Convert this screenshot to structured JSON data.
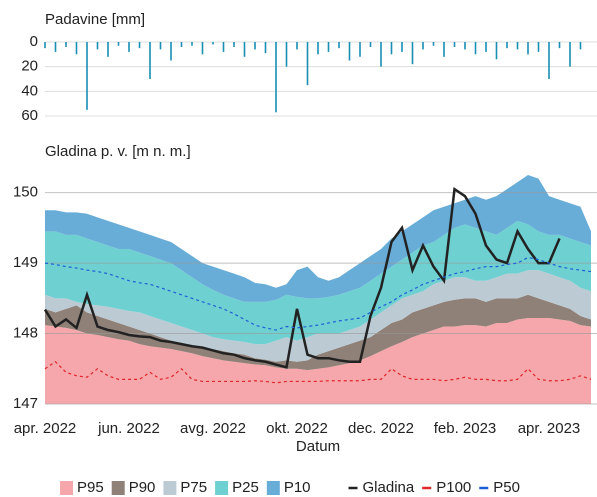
{
  "chart_data": [
    {
      "type": "bar",
      "title": "Padavine [mm]",
      "color": "#1a8fb5",
      "inverted": true,
      "ylim": [
        0,
        60
      ],
      "yticks": [
        0,
        20,
        40,
        60
      ],
      "grid": true,
      "values": [
        5,
        8,
        4,
        10,
        55,
        6,
        12,
        3,
        8,
        5,
        30,
        6,
        15,
        4,
        3,
        10,
        2,
        8,
        4,
        12,
        6,
        9,
        57,
        20,
        6,
        35,
        10,
        8,
        5,
        15,
        12,
        4,
        20,
        10,
        8,
        18,
        6,
        3,
        12,
        4,
        6,
        10,
        8,
        14,
        5,
        6,
        10,
        8,
        30,
        5,
        20,
        6,
        0
      ]
    },
    {
      "type": "area",
      "title": "Gladina p. v. [m n. m.]",
      "xlabel": "Datum",
      "ylim": [
        147,
        150.35
      ],
      "yticks": [
        147,
        148,
        149,
        150
      ],
      "grid": true,
      "categories": [
        "apr. 2022",
        null,
        null,
        null,
        null,
        null,
        null,
        null,
        "jun. 2022",
        null,
        null,
        null,
        null,
        null,
        null,
        null,
        "avg. 2022",
        null,
        null,
        null,
        null,
        null,
        null,
        null,
        "okt. 2022",
        null,
        null,
        null,
        null,
        null,
        null,
        null,
        "dec. 2022",
        null,
        null,
        null,
        null,
        null,
        null,
        null,
        "feb. 2023",
        null,
        null,
        null,
        null,
        null,
        null,
        null,
        "apr. 2023",
        null,
        null,
        null,
        null
      ],
      "series": [
        {
          "name": "P95",
          "kind": "area",
          "color": "#f5a7ab",
          "values": [
            148.12,
            148.1,
            148.08,
            148.05,
            148.0,
            147.98,
            147.95,
            147.92,
            147.9,
            147.85,
            147.82,
            147.8,
            147.78,
            147.75,
            147.72,
            147.68,
            147.65,
            147.62,
            147.6,
            147.58,
            147.56,
            147.55,
            147.52,
            147.5,
            147.5,
            147.48,
            147.5,
            147.52,
            147.55,
            147.58,
            147.62,
            147.68,
            147.75,
            147.82,
            147.88,
            147.95,
            148.0,
            148.05,
            148.1,
            148.1,
            148.12,
            148.12,
            148.1,
            148.15,
            148.15,
            148.2,
            148.22,
            148.22,
            148.22,
            148.2,
            148.18,
            148.12,
            148.1
          ]
        },
        {
          "name": "P90",
          "kind": "area",
          "color": "#8f8078",
          "values": [
            148.35,
            148.3,
            148.35,
            148.4,
            148.3,
            148.25,
            148.2,
            148.15,
            148.1,
            148.05,
            148.0,
            147.95,
            147.9,
            147.85,
            147.82,
            147.8,
            147.78,
            147.75,
            147.72,
            147.7,
            147.65,
            147.63,
            147.6,
            147.62,
            147.6,
            147.62,
            147.7,
            147.75,
            147.8,
            147.85,
            147.9,
            147.95,
            148.05,
            148.15,
            148.2,
            148.3,
            148.35,
            148.4,
            148.45,
            148.48,
            148.5,
            148.5,
            148.45,
            148.5,
            148.5,
            148.5,
            148.55,
            148.5,
            148.45,
            148.4,
            148.35,
            148.25,
            148.2
          ]
        },
        {
          "name": "P75",
          "kind": "area",
          "color": "#bccbd3",
          "values": [
            148.55,
            148.5,
            148.5,
            148.45,
            148.42,
            148.4,
            148.38,
            148.35,
            148.32,
            148.3,
            148.25,
            148.2,
            148.15,
            148.1,
            148.05,
            148.0,
            147.95,
            147.92,
            147.9,
            147.88,
            147.85,
            147.85,
            147.9,
            147.95,
            147.9,
            147.95,
            148.0,
            148.0,
            148.0,
            148.05,
            148.1,
            148.2,
            148.3,
            148.4,
            148.5,
            148.55,
            148.6,
            148.7,
            148.75,
            148.8,
            148.8,
            148.75,
            148.75,
            148.8,
            148.85,
            148.85,
            148.9,
            148.9,
            148.85,
            148.8,
            148.75,
            148.65,
            148.6
          ]
        },
        {
          "name": "P25",
          "kind": "area",
          "color": "#6fd0d2",
          "values": [
            149.45,
            149.45,
            149.4,
            149.4,
            149.35,
            149.3,
            149.25,
            149.2,
            149.2,
            149.15,
            149.1,
            149.05,
            149.0,
            148.9,
            148.8,
            148.7,
            148.62,
            148.55,
            148.5,
            148.45,
            148.45,
            148.45,
            148.48,
            148.55,
            148.52,
            148.5,
            148.5,
            148.52,
            148.55,
            148.6,
            148.65,
            148.75,
            148.85,
            148.95,
            149.05,
            149.15,
            149.25,
            149.3,
            149.4,
            149.5,
            149.55,
            149.5,
            149.45,
            149.4,
            149.5,
            149.6,
            149.55,
            149.45,
            149.4,
            149.4,
            149.35,
            149.3,
            149.25
          ]
        },
        {
          "name": "P10",
          "kind": "area",
          "color": "#68acd8",
          "values": [
            149.75,
            149.75,
            149.72,
            149.72,
            149.7,
            149.65,
            149.6,
            149.55,
            149.5,
            149.45,
            149.4,
            149.35,
            149.3,
            149.2,
            149.1,
            149.0,
            148.95,
            148.9,
            148.85,
            148.8,
            148.72,
            148.7,
            148.65,
            148.7,
            148.9,
            148.95,
            148.8,
            148.75,
            148.8,
            148.9,
            149.0,
            149.1,
            149.2,
            149.35,
            149.45,
            149.55,
            149.65,
            149.75,
            149.8,
            149.85,
            149.9,
            149.95,
            149.9,
            149.95,
            150.05,
            150.15,
            150.25,
            150.2,
            149.95,
            149.9,
            149.85,
            149.8,
            149.45
          ]
        },
        {
          "name": "Gladina",
          "kind": "line",
          "color": "#222222",
          "values": [
            148.34,
            148.1,
            148.2,
            148.08,
            148.55,
            148.1,
            148.05,
            148.02,
            147.98,
            147.96,
            147.95,
            147.9,
            147.88,
            147.85,
            147.82,
            147.8,
            147.76,
            147.72,
            147.7,
            147.65,
            147.62,
            147.6,
            147.56,
            147.52,
            148.35,
            147.7,
            147.65,
            147.65,
            147.62,
            147.6,
            147.6,
            148.25,
            148.65,
            149.3,
            149.5,
            148.9,
            149.25,
            148.95,
            148.75,
            150.05,
            149.95,
            149.7,
            149.25,
            149.05,
            149.0,
            149.45,
            149.2,
            149.0,
            149.0,
            149.35,
            null,
            null,
            null
          ]
        },
        {
          "name": "P100",
          "kind": "line",
          "dash": true,
          "color": "#e0252b",
          "values": [
            147.5,
            147.6,
            147.45,
            147.4,
            147.38,
            147.5,
            147.4,
            147.35,
            147.35,
            147.35,
            147.45,
            147.35,
            147.38,
            147.5,
            147.35,
            147.32,
            147.32,
            147.32,
            147.32,
            147.32,
            147.33,
            147.32,
            147.3,
            147.32,
            147.32,
            147.32,
            147.32,
            147.33,
            147.33,
            147.33,
            147.33,
            147.35,
            147.35,
            147.5,
            147.4,
            147.35,
            147.35,
            147.35,
            147.33,
            147.35,
            147.38,
            147.35,
            147.35,
            147.33,
            147.33,
            147.35,
            147.5,
            147.35,
            147.33,
            147.33,
            147.35,
            147.4,
            147.35
          ]
        },
        {
          "name": "P50",
          "kind": "line",
          "dash": true,
          "color": "#1f5fd6",
          "values": [
            149.0,
            148.98,
            148.95,
            148.93,
            148.9,
            148.88,
            148.85,
            148.8,
            148.75,
            148.72,
            148.7,
            148.65,
            148.6,
            148.55,
            148.5,
            148.45,
            148.4,
            148.35,
            148.28,
            148.2,
            148.12,
            148.08,
            148.05,
            148.1,
            148.08,
            148.1,
            148.12,
            148.15,
            148.18,
            148.2,
            148.22,
            148.3,
            148.38,
            148.45,
            148.55,
            148.62,
            148.7,
            148.75,
            148.8,
            148.85,
            148.88,
            148.92,
            148.95,
            148.95,
            148.98,
            149.0,
            149.08,
            149.05,
            149.0,
            148.95,
            148.92,
            148.9,
            148.88
          ]
        }
      ]
    }
  ]
}
